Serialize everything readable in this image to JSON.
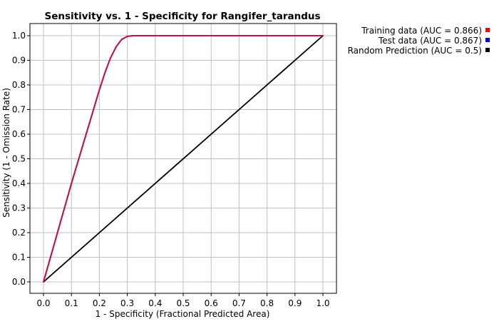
{
  "chart_data": {
    "type": "line",
    "title": "Sensitivity vs. 1 - Specificity for Rangifer_tarandus",
    "xlabel": "1 - Specificity  (Fractional Predicted Area)",
    "ylabel": "Sensitivity  (1 - Omission Rate)",
    "xlim": [
      0,
      1
    ],
    "ylim": [
      0,
      1
    ],
    "x_ticks": [
      "0.0",
      "0.1",
      "0.2",
      "0.3",
      "0.4",
      "0.5",
      "0.6",
      "0.7",
      "0.8",
      "0.9",
      "1.0"
    ],
    "y_ticks": [
      "0.0",
      "0.1",
      "0.2",
      "0.3",
      "0.4",
      "0.5",
      "0.6",
      "0.7",
      "0.8",
      "0.9",
      "1.0"
    ],
    "grid": true,
    "legend_position": "top-right, outside plot",
    "series": [
      {
        "name": "Training data (AUC = 0.866)",
        "color": "#ff0000",
        "x": [
          0.0,
          0.05,
          0.1,
          0.15,
          0.2,
          0.22,
          0.24,
          0.26,
          0.28,
          0.3,
          0.32,
          0.34,
          0.5,
          0.75,
          1.0
        ],
        "y": [
          0.0,
          0.2,
          0.4,
          0.59,
          0.78,
          0.85,
          0.91,
          0.955,
          0.985,
          0.997,
          1.0,
          1.0,
          1.0,
          1.0,
          1.0
        ]
      },
      {
        "name": "Test data (AUC = 0.867)",
        "color": "#0000ff",
        "x": [
          0.0,
          0.05,
          0.1,
          0.15,
          0.2,
          0.22,
          0.24,
          0.26,
          0.28,
          0.3,
          0.32,
          0.34,
          0.5,
          0.75,
          1.0
        ],
        "y": [
          0.0,
          0.2,
          0.4,
          0.59,
          0.78,
          0.85,
          0.91,
          0.955,
          0.985,
          0.997,
          1.0,
          1.0,
          1.0,
          1.0,
          1.0
        ]
      },
      {
        "name": "Random Prediction (AUC = 0.5)",
        "color": "#000000",
        "x": [
          0.0,
          1.0
        ],
        "y": [
          0.0,
          1.0
        ]
      }
    ]
  }
}
